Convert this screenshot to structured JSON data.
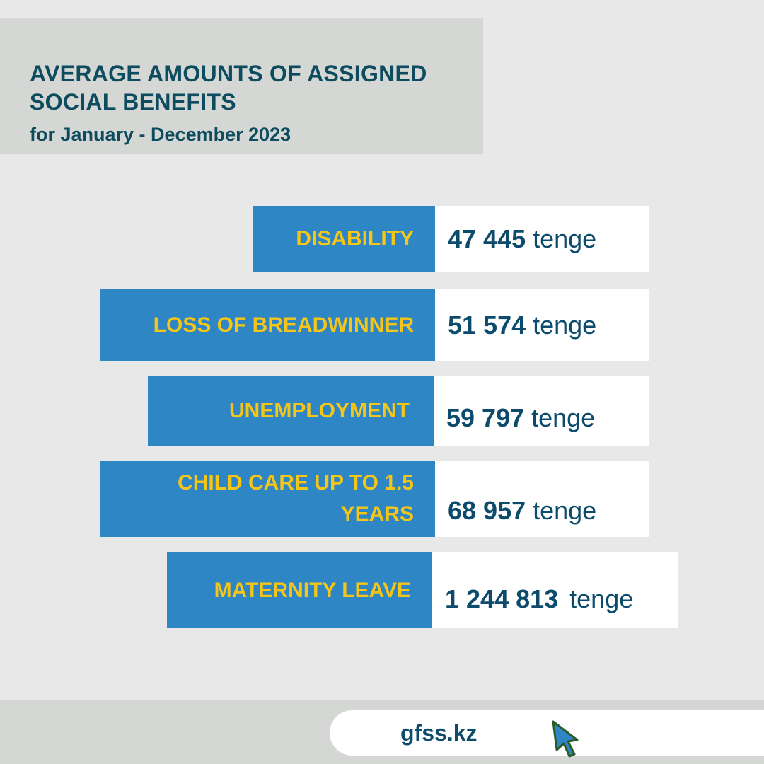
{
  "header": {
    "title": "AVERAGE AMOUNTS OF ASSIGNED\nSOCIAL BENEFITS",
    "subtitle": "for January - December 2023"
  },
  "benefits": [
    {
      "label": "DISABILITY",
      "amount": "47 445",
      "unit": "tenge"
    },
    {
      "label": "LOSS OF BREADWINNER",
      "amount": "51 574",
      "unit": "tenge"
    },
    {
      "label": "UNEMPLOYMENT",
      "amount": "59 797",
      "unit": "tenge"
    },
    {
      "label": "CHILD CARE UP TO 1.5 YEARS",
      "amount": "68 957",
      "unit": "tenge"
    },
    {
      "label": "MATERNITY LEAVE",
      "amount": "1 244 813",
      "unit": "tenge"
    }
  ],
  "footer": {
    "website": "gfss.kz",
    "icon": "cursor-arrow-icon"
  },
  "colors": {
    "background": "#e8e8e8",
    "title_panel": "#d5d7d5",
    "label_blue": "#2e86c4",
    "label_text_yellow": "#f5c518",
    "value_text_navy": "#0d4b6c"
  }
}
